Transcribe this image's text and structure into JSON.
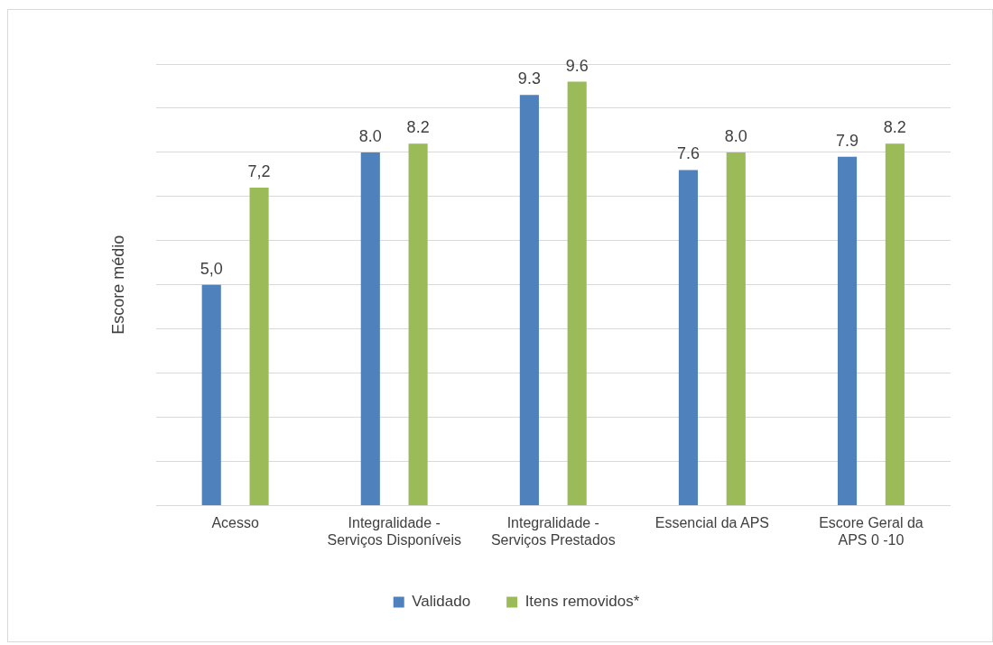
{
  "chart_data": {
    "type": "bar",
    "ylabel": "Escore médio",
    "categories": [
      "Acesso",
      "Integralidade - Serviços Disponíveis",
      "Integralidade - Serviços Prestados",
      "Essencial da APS",
      "Escore Geral da APS 0 -10"
    ],
    "series": [
      {
        "name": "Validado",
        "color": "#4f81bd",
        "values": [
          5.0,
          8.0,
          9.3,
          7.6,
          7.9
        ],
        "value_labels": [
          "5,0",
          "8.0",
          "9.3",
          "7.6",
          "7.9"
        ]
      },
      {
        "name": "Itens removidos*",
        "color": "#9bbb59",
        "values": [
          7.2,
          8.2,
          9.6,
          8.0,
          8.2
        ],
        "value_labels": [
          "7,2",
          "8.2",
          "9.6",
          "8.0",
          "8.2"
        ]
      }
    ],
    "ylim": [
      0,
      10
    ],
    "yticks": [
      {
        "value": 0,
        "label": null
      },
      {
        "value": 1,
        "label": null
      },
      {
        "value": 2,
        "label": null
      },
      {
        "value": 3,
        "label": null
      },
      {
        "value": 4,
        "label": null
      },
      {
        "value": 5,
        "label": null
      },
      {
        "value": 6,
        "label": null
      },
      {
        "value": 7,
        "label": null
      },
      {
        "value": 8,
        "label": null
      },
      {
        "value": 9,
        "label": null
      },
      {
        "value": 10,
        "label": null
      }
    ],
    "tick_labels": "x",
    "grid": "y",
    "legend": "bottom"
  }
}
